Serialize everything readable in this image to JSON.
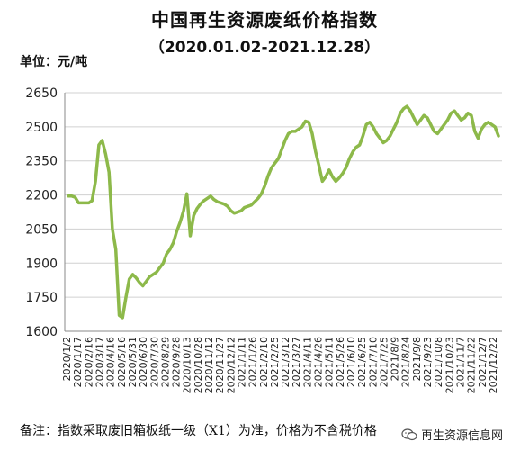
{
  "header": {
    "title": "中国再生资源废纸价格指数",
    "subtitle": "（2020.01.02-2021.12.28）",
    "unit_label": "单位：元/吨"
  },
  "footer": {
    "note": "备注：指数采取废旧箱板纸一级（X1）为准，价格为不含税价格",
    "brand_icon": "wechat-icon",
    "brand_name": "再生资源信息网"
  },
  "colors": {
    "line": "#8db94a",
    "grid": "#d0d0d0"
  },
  "chart_data": {
    "type": "line",
    "title": "中国再生资源废纸价格指数",
    "subtitle": "（2020.01.02-2021.12.28）",
    "ylabel": "单位：元/吨",
    "xlabel": "",
    "ylim": [
      1600,
      2650
    ],
    "yticks": [
      1600,
      1750,
      1900,
      2050,
      2200,
      2350,
      2500,
      2650
    ],
    "grid": true,
    "legend": "none",
    "xtick_labels": [
      "2020/1/2",
      "2020/1/17",
      "2020/2/16",
      "2020/3/17",
      "2020/4/16",
      "2020/5/16",
      "2020/5/31",
      "2020/6/30",
      "2020/7/30",
      "2020/8/29",
      "2020/9/28",
      "2020/10/13",
      "2020/10/28",
      "2020/11/12",
      "2020/11/27",
      "2020/12/12",
      "2021/1/11",
      "2021/1/26",
      "2021/2/10",
      "2021/2/25",
      "2021/3/12",
      "2021/3/27",
      "2021/4/11",
      "2021/4/26",
      "2021/5/11",
      "2021/5/26",
      "2021/6/10",
      "2021/6/25",
      "2021/7/10",
      "2021/7/25",
      "2021/8/9",
      "2021/8/24",
      "2021/9/8",
      "2021/9/23",
      "2021/10/8",
      "2021/10/23",
      "2021/11/7",
      "2021/11/22",
      "2021/12/7",
      "2021/12/22"
    ],
    "x_labels_note": "Tick labels are printed rotated; many overlap in the original.",
    "series": [
      {
        "values": [
          2195,
          2195,
          2190,
          2165,
          2165,
          2165,
          2165,
          2175,
          2260,
          2420,
          2440,
          2380,
          2300,
          2050,
          1960,
          1670,
          1660,
          1750,
          1830,
          1850,
          1835,
          1815,
          1800,
          1820,
          1840,
          1850,
          1860,
          1880,
          1900,
          1940,
          1960,
          1990,
          2040,
          2080,
          2130,
          2205,
          2020,
          2110,
          2140,
          2160,
          2175,
          2185,
          2195,
          2180,
          2170,
          2165,
          2160,
          2150,
          2130,
          2120,
          2125,
          2130,
          2145,
          2150,
          2155,
          2170,
          2185,
          2205,
          2240,
          2285,
          2320,
          2340,
          2360,
          2400,
          2440,
          2470,
          2480,
          2480,
          2490,
          2500,
          2525,
          2520,
          2470,
          2390,
          2330,
          2260,
          2280,
          2310,
          2280,
          2260,
          2275,
          2295,
          2320,
          2360,
          2390,
          2410,
          2420,
          2460,
          2510,
          2520,
          2500,
          2470,
          2450,
          2430,
          2440,
          2460,
          2490,
          2520,
          2560,
          2580,
          2590,
          2570,
          2540,
          2510,
          2530,
          2550,
          2540,
          2510,
          2480,
          2470,
          2490,
          2510,
          2530,
          2560,
          2570,
          2550,
          2530,
          2540,
          2560,
          2550,
          2480,
          2450,
          2490,
          2510,
          2520,
          2510,
          2500,
          2460
        ]
      }
    ]
  }
}
